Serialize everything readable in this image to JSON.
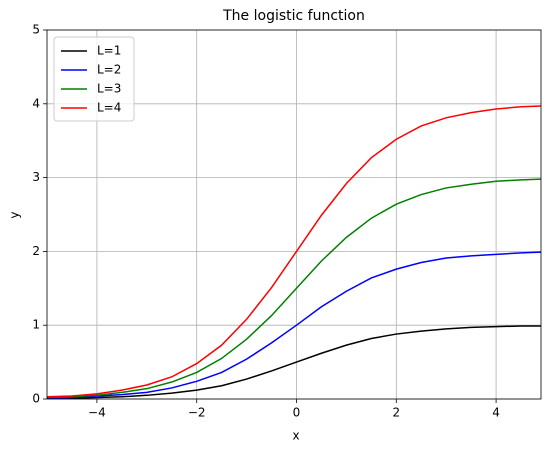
{
  "chart_data": {
    "type": "line",
    "title": "The logistic function",
    "x_label": "x",
    "y_label": "y",
    "x": [
      -5,
      -4.5,
      -4,
      -3.5,
      -3,
      -2.5,
      -2,
      -1.5,
      -1,
      -0.5,
      0,
      0.5,
      1,
      1.5,
      2,
      2.5,
      3,
      3.5,
      4,
      4.5,
      4.9
    ],
    "series": [
      {
        "name": "L=1",
        "color": "#000000",
        "values": [
          0.01,
          0.01,
          0.02,
          0.03,
          0.05,
          0.08,
          0.12,
          0.18,
          0.27,
          0.38,
          0.5,
          0.62,
          0.73,
          0.82,
          0.88,
          0.92,
          0.95,
          0.97,
          0.98,
          0.99,
          0.99
        ]
      },
      {
        "name": "L=2",
        "color": "#0000ff",
        "values": [
          0.01,
          0.02,
          0.04,
          0.06,
          0.09,
          0.15,
          0.24,
          0.36,
          0.54,
          0.76,
          1,
          1.25,
          1.46,
          1.64,
          1.76,
          1.85,
          1.91,
          1.94,
          1.96,
          1.98,
          1.99
        ]
      },
      {
        "name": "L=3",
        "color": "#008000",
        "values": [
          0.02,
          0.03,
          0.05,
          0.09,
          0.14,
          0.23,
          0.36,
          0.55,
          0.81,
          1.13,
          1.5,
          1.87,
          2.19,
          2.45,
          2.64,
          2.77,
          2.86,
          2.91,
          2.95,
          2.97,
          2.98
        ]
      },
      {
        "name": "L=4",
        "color": "#ff0000",
        "values": [
          0.03,
          0.04,
          0.07,
          0.12,
          0.19,
          0.3,
          0.48,
          0.73,
          1.08,
          1.51,
          2,
          2.49,
          2.92,
          3.27,
          3.52,
          3.7,
          3.81,
          3.88,
          3.93,
          3.96,
          3.97
        ]
      }
    ],
    "xlim": [
      -5,
      4.9
    ],
    "ylim": [
      0,
      5
    ],
    "xticks": [
      {
        "value": -4,
        "label": "−4"
      },
      {
        "value": -2,
        "label": "−2"
      },
      0,
      2,
      4
    ],
    "yticks": [
      0,
      1,
      2,
      3,
      4,
      5
    ],
    "grid": true,
    "legend": "upper left"
  }
}
